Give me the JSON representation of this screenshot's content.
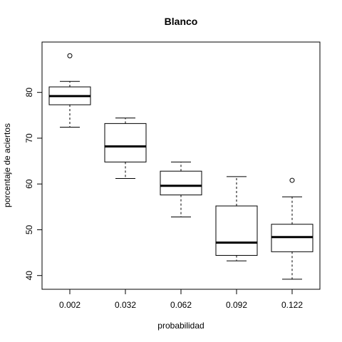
{
  "chart_data": {
    "type": "boxplot",
    "title": "Blanco",
    "xlabel": "probabilidad",
    "ylabel": "porcentaje de aciertos",
    "ylim": [
      37,
      91
    ],
    "yticks": [
      40,
      50,
      60,
      70,
      80
    ],
    "grid": false,
    "categories": [
      "0.002",
      "0.032",
      "0.062",
      "0.092",
      "0.122"
    ],
    "boxes": [
      {
        "whisker_low": 72.4,
        "q1": 77.3,
        "median": 79.2,
        "q3": 81.2,
        "whisker_high": 82.4,
        "outliers": [
          88.0
        ]
      },
      {
        "whisker_low": 61.2,
        "q1": 64.8,
        "median": 68.2,
        "q3": 73.2,
        "whisker_high": 74.4,
        "outliers": []
      },
      {
        "whisker_low": 52.8,
        "q1": 57.6,
        "median": 59.6,
        "q3": 62.8,
        "whisker_high": 64.8,
        "outliers": []
      },
      {
        "whisker_low": 43.2,
        "q1": 44.4,
        "median": 47.2,
        "q3": 55.2,
        "whisker_high": 61.6,
        "outliers": []
      },
      {
        "whisker_low": 39.2,
        "q1": 45.2,
        "median": 48.4,
        "q3": 51.2,
        "whisker_high": 57.2,
        "outliers": [
          60.8
        ]
      }
    ]
  }
}
